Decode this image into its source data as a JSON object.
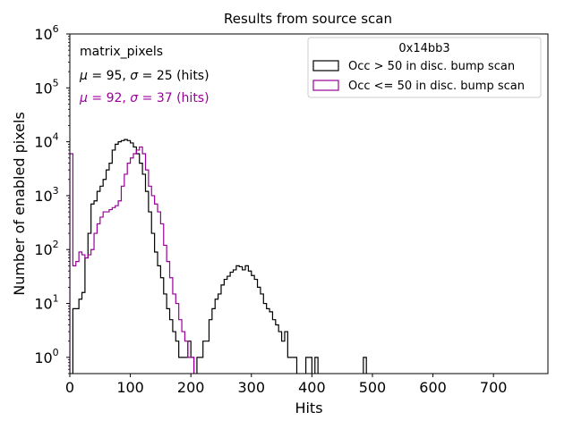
{
  "chart_data": {
    "type": "histogram-step",
    "title": "Results from source scan",
    "xlabel": "Hits",
    "ylabel": "Number of enabled pixels",
    "xlim": [
      0,
      790
    ],
    "ylim": [
      0.5,
      1000000
    ],
    "yscale": "log",
    "xticks": [
      0,
      100,
      200,
      300,
      400,
      500,
      600,
      700
    ],
    "xtick_labels": [
      "0",
      "100",
      "200",
      "300",
      "400",
      "500",
      "600",
      "700"
    ],
    "yticks": [
      1,
      10,
      100,
      1000,
      10000,
      100000,
      1000000
    ],
    "ytick_labels": [
      {
        "base": "10",
        "exp": "0"
      },
      {
        "base": "10",
        "exp": "1"
      },
      {
        "base": "10",
        "exp": "2"
      },
      {
        "base": "10",
        "exp": "3"
      },
      {
        "base": "10",
        "exp": "4"
      },
      {
        "base": "10",
        "exp": "5"
      },
      {
        "base": "10",
        "exp": "6"
      }
    ],
    "annotations": {
      "name": "matrix_pixels",
      "black": {
        "mu": "95",
        "sigma": "25",
        "unit": "(hits)"
      },
      "purple": {
        "mu": "92",
        "sigma": "37",
        "unit": "(hits)"
      }
    },
    "legend": {
      "title": "0x14bb3",
      "location": "top-right",
      "entries": [
        "Occ > 50 in disc. bump scan",
        "Occ <= 50 in disc. bump scan"
      ]
    },
    "bin_width": 5,
    "series": [
      {
        "name": "Occ > 50 in disc. bump scan",
        "color": "#000000",
        "bins": [
          [
            5,
            8
          ],
          [
            10,
            8
          ],
          [
            15,
            12
          ],
          [
            20,
            16
          ],
          [
            25,
            70
          ],
          [
            30,
            200
          ],
          [
            35,
            700
          ],
          [
            40,
            800
          ],
          [
            45,
            1200
          ],
          [
            50,
            1500
          ],
          [
            55,
            2000
          ],
          [
            60,
            3000
          ],
          [
            65,
            4000
          ],
          [
            70,
            7000
          ],
          [
            75,
            9000
          ],
          [
            80,
            10000
          ],
          [
            85,
            10500
          ],
          [
            90,
            11000
          ],
          [
            95,
            10500
          ],
          [
            100,
            9500
          ],
          [
            105,
            8000
          ],
          [
            110,
            6000
          ],
          [
            115,
            4000
          ],
          [
            120,
            2500
          ],
          [
            125,
            1200
          ],
          [
            130,
            500
          ],
          [
            135,
            200
          ],
          [
            140,
            90
          ],
          [
            145,
            50
          ],
          [
            150,
            30
          ],
          [
            155,
            15
          ],
          [
            160,
            8
          ],
          [
            165,
            5
          ],
          [
            170,
            3
          ],
          [
            175,
            2
          ],
          [
            180,
            1
          ],
          [
            185,
            1
          ],
          [
            190,
            1
          ],
          [
            195,
            2
          ],
          [
            200,
            1
          ],
          [
            210,
            1
          ],
          [
            215,
            1
          ],
          [
            220,
            2
          ],
          [
            225,
            2
          ],
          [
            230,
            5
          ],
          [
            235,
            8
          ],
          [
            240,
            12
          ],
          [
            245,
            15
          ],
          [
            250,
            22
          ],
          [
            255,
            28
          ],
          [
            260,
            32
          ],
          [
            265,
            38
          ],
          [
            270,
            42
          ],
          [
            275,
            50
          ],
          [
            280,
            48
          ],
          [
            285,
            42
          ],
          [
            290,
            50
          ],
          [
            295,
            40
          ],
          [
            300,
            33
          ],
          [
            305,
            28
          ],
          [
            310,
            20
          ],
          [
            315,
            15
          ],
          [
            320,
            10
          ],
          [
            325,
            8
          ],
          [
            330,
            7
          ],
          [
            335,
            5
          ],
          [
            340,
            4
          ],
          [
            345,
            3
          ],
          [
            350,
            2
          ],
          [
            355,
            3
          ],
          [
            360,
            1
          ],
          [
            365,
            1
          ],
          [
            370,
            1
          ],
          [
            390,
            1
          ],
          [
            395,
            1
          ],
          [
            405,
            1
          ],
          [
            485,
            1
          ]
        ]
      },
      {
        "name": "Occ <= 50 in disc. bump scan",
        "color": "#990099",
        "bins": [
          [
            0,
            6000
          ],
          [
            5,
            50
          ],
          [
            10,
            60
          ],
          [
            15,
            90
          ],
          [
            20,
            80
          ],
          [
            25,
            70
          ],
          [
            30,
            80
          ],
          [
            35,
            100
          ],
          [
            40,
            200
          ],
          [
            45,
            300
          ],
          [
            50,
            400
          ],
          [
            55,
            500
          ],
          [
            60,
            500
          ],
          [
            65,
            550
          ],
          [
            70,
            600
          ],
          [
            75,
            650
          ],
          [
            80,
            800
          ],
          [
            85,
            1500
          ],
          [
            90,
            2500
          ],
          [
            95,
            4000
          ],
          [
            100,
            5000
          ],
          [
            105,
            6000
          ],
          [
            110,
            7000
          ],
          [
            115,
            8000
          ],
          [
            120,
            6000
          ],
          [
            125,
            3000
          ],
          [
            130,
            1500
          ],
          [
            135,
            1000
          ],
          [
            140,
            700
          ],
          [
            145,
            500
          ],
          [
            150,
            300
          ],
          [
            155,
            120
          ],
          [
            160,
            60
          ],
          [
            165,
            30
          ],
          [
            170,
            15
          ],
          [
            175,
            10
          ],
          [
            180,
            5
          ],
          [
            185,
            3
          ],
          [
            190,
            2
          ],
          [
            195,
            1
          ],
          [
            200,
            1
          ]
        ]
      }
    ]
  }
}
